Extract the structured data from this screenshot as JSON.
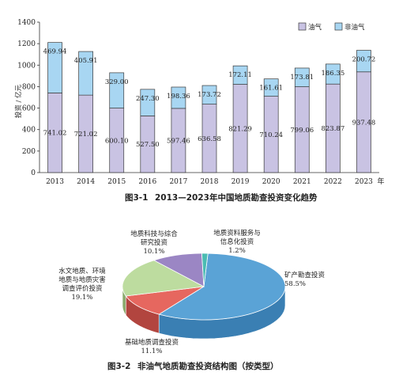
{
  "chart_data": [
    {
      "type": "bar",
      "stacked": true,
      "caption_number": "图3-1",
      "title": "2013—2023年中国地质勘查投资变化趋势",
      "ylabel": "投资 / 亿元",
      "x_suffix": "年",
      "categories": [
        "2013",
        "2014",
        "2015",
        "2016",
        "2017",
        "2018",
        "2019",
        "2020",
        "2021",
        "2022",
        "2023"
      ],
      "ylim": [
        0,
        1400
      ],
      "yticks": [
        0,
        200,
        400,
        600,
        800,
        1000,
        1200,
        1400
      ],
      "legend_position": "top-right",
      "series": [
        {
          "name": "油气",
          "color": "#c9c3e3",
          "values": [
            741.02,
            721.02,
            600.1,
            527.5,
            597.46,
            636.58,
            821.29,
            710.24,
            799.06,
            823.87,
            937.48
          ],
          "labels": [
            "741.02",
            "721.02",
            "600.10",
            "527.50",
            "597.46",
            "636.58",
            "821.29",
            "710.24",
            "799.06",
            "823.87",
            "937.48"
          ]
        },
        {
          "name": "非油气",
          "color": "#a8d6f2",
          "values": [
            469.94,
            405.91,
            329.0,
            247.3,
            198.36,
            173.72,
            172.11,
            161.61,
            173.81,
            186.35,
            200.72
          ],
          "labels": [
            "469.94",
            "405.91",
            "329.00",
            "247.30",
            "198.36",
            "173.72",
            "172.11",
            "161.61",
            "173.81",
            "186.35",
            "200.72"
          ]
        }
      ]
    },
    {
      "type": "pie",
      "style": "3d",
      "caption_number": "图3-2",
      "title": "非油气地质勘查投资结构图（按类型）",
      "slices": [
        {
          "lines": [
            "矿产勘查投资"
          ],
          "percent": "58.5%",
          "value": 58.5,
          "color": "#5aa3d6",
          "side": "#3a7fb3"
        },
        {
          "lines": [
            "基础地质调查投资"
          ],
          "percent": "11.1%",
          "value": 11.1,
          "color": "#e6675f",
          "side": "#b2453f"
        },
        {
          "lines": [
            "水文地质、环境",
            "地质与地质灾害",
            "调查评价投资"
          ],
          "percent": "19.1%",
          "value": 19.1,
          "color": "#bddc9f",
          "side": "#8aab6d"
        },
        {
          "lines": [
            "地质科技与综合",
            "研究投资"
          ],
          "percent": "10.1%",
          "value": 10.1,
          "color": "#9b86c4",
          "side": "#6f5b98"
        },
        {
          "lines": [
            "地质资料服务与",
            "信息化投资"
          ],
          "percent": "1.2%",
          "value": 1.2,
          "color": "#4bbcb2",
          "side": "#2f8a82"
        }
      ]
    }
  ]
}
